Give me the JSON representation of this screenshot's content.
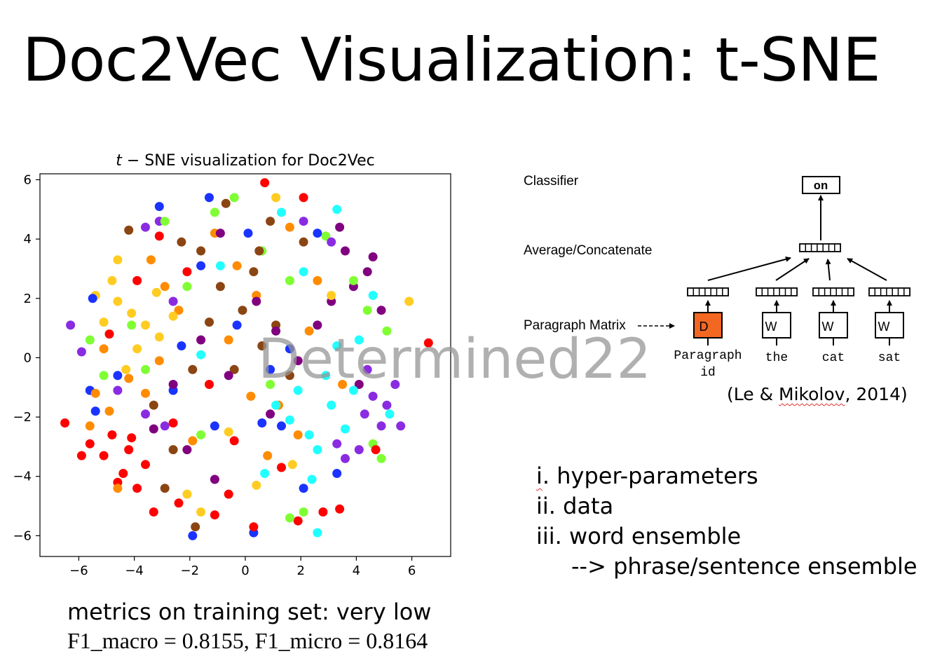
{
  "slide": {
    "title": "Doc2Vec Visualization: t-SNE",
    "watermark": "Determined22",
    "metrics_label": "metrics on training set: very low",
    "scores": "F1_macro = 0.8155, F1_micro = 0.8164",
    "citation_open": "(Le & ",
    "citation_author": "Mikolov",
    "citation_close": ", 2014)",
    "notes": {
      "item1_num": "i",
      "item1_rest": ". hyper-parameters",
      "item2": "ii. data",
      "item3": "iii. word ensemble",
      "item4": "--> phrase/sentence ensemble"
    }
  },
  "diagram": {
    "classifier_label": "Classifier",
    "average_label": "Average/Concatenate",
    "paragraph_matrix_label": "Paragraph Matrix",
    "output_word": "on",
    "paragraph_box": "D",
    "word_box": "W",
    "paragraph_id_line1": "Paragraph",
    "paragraph_id_line2": "id",
    "context_words": [
      "the",
      "cat",
      "sat"
    ],
    "paragraph_box_color": "#f26722"
  },
  "chart_data": {
    "type": "scatter",
    "title_italic": "t",
    "title_rest": " − SNE visualization for Doc2Vec",
    "xlabel": "",
    "ylabel": "",
    "xlim": [
      -7.4,
      7.4
    ],
    "ylim": [
      -6.7,
      6.2
    ],
    "xticks": [
      -6,
      -4,
      -2,
      0,
      2,
      4,
      6
    ],
    "yticks": [
      -6,
      -4,
      -2,
      0,
      2,
      4,
      6
    ],
    "tick_labels_x": [
      "−6",
      "−4",
      "−2",
      "0",
      "2",
      "4",
      "6"
    ],
    "tick_labels_y": [
      "−6",
      "−4",
      "−2",
      "0",
      "2",
      "4",
      "6"
    ],
    "grid": false,
    "legend": "none",
    "series": [
      {
        "color": "#ff0000",
        "points": [
          [
            -4.4,
            -3.9
          ],
          [
            -5.1,
            -3.3
          ],
          [
            -3.9,
            -4.4
          ],
          [
            -4.8,
            -2.6
          ],
          [
            -4.2,
            -3.1
          ],
          [
            -5.6,
            -2.9
          ],
          [
            -3.6,
            -3.6
          ],
          [
            -4.6,
            -4.2
          ],
          [
            -2.4,
            -4.9
          ],
          [
            -3.3,
            -5.2
          ],
          [
            -1.1,
            -5.3
          ],
          [
            0.3,
            -5.7
          ],
          [
            1.9,
            -5.5
          ],
          [
            2.8,
            -5.2
          ],
          [
            3.4,
            -5.1
          ],
          [
            -0.6,
            -4.6
          ],
          [
            -6.5,
            -2.2
          ],
          [
            -5.9,
            -3.3
          ],
          [
            0.7,
            5.9
          ],
          [
            2.1,
            5.4
          ],
          [
            -2.6,
            -2.2
          ],
          [
            -0.4,
            -2.8
          ],
          [
            -4.9,
            0.8
          ],
          [
            -3.1,
            4.1
          ],
          [
            -1.3,
            -0.9
          ],
          [
            4.7,
            -3.1
          ],
          [
            6.6,
            0.5
          ],
          [
            -4.1,
            -2.7
          ],
          [
            -3.9,
            2.6
          ],
          [
            1.3,
            -3.7
          ],
          [
            -2.1,
            2.9
          ]
        ]
      },
      {
        "color": "#ff8c00",
        "points": [
          [
            -5.6,
            -2.3
          ],
          [
            -4.9,
            -1.8
          ],
          [
            -3.6,
            -1.2
          ],
          [
            -2.4,
            1.6
          ],
          [
            -0.6,
            0.6
          ],
          [
            0.4,
            2.1
          ],
          [
            1.2,
            -1.6
          ],
          [
            -3.1,
            -0.1
          ],
          [
            -1.9,
            -2.8
          ],
          [
            -4.2,
            -0.7
          ],
          [
            -5.1,
            0.3
          ],
          [
            2.6,
            2.6
          ],
          [
            0.8,
            -3.3
          ],
          [
            -1.1,
            4.2
          ],
          [
            3.5,
            -0.9
          ],
          [
            -2.9,
            2.4
          ],
          [
            1.6,
            4.4
          ],
          [
            -4.6,
            -4.4
          ],
          [
            -0.3,
            3.1
          ],
          [
            -5.4,
            -1.2
          ],
          [
            1.9,
            -2.6
          ],
          [
            -3.4,
            3.3
          ],
          [
            0.2,
            -1.3
          ],
          [
            2.3,
            0.9
          ]
        ]
      },
      {
        "color": "#ffcc22",
        "points": [
          [
            -4.1,
            1.5
          ],
          [
            -3.6,
            1.1
          ],
          [
            -4.6,
            1.9
          ],
          [
            -3.1,
            0.7
          ],
          [
            -4.8,
            2.6
          ],
          [
            -3.9,
            0.3
          ],
          [
            -2.6,
            1.4
          ],
          [
            -4.3,
            -0.4
          ],
          [
            -3.2,
            2.2
          ],
          [
            -5.1,
            1.2
          ],
          [
            -0.6,
            -2.5
          ],
          [
            -1.6,
            -5.2
          ],
          [
            0.4,
            -4.3
          ],
          [
            3.1,
            2.1
          ],
          [
            1.7,
            -3.6
          ],
          [
            -5.4,
            2.1
          ],
          [
            -4.6,
            3.3
          ],
          [
            5.9,
            1.9
          ],
          [
            -2.1,
            -4.6
          ],
          [
            1.1,
            5.4
          ]
        ]
      },
      {
        "color": "#8b4513",
        "points": [
          [
            -0.1,
            1.6
          ],
          [
            0.6,
            0.4
          ],
          [
            -0.9,
            2.4
          ],
          [
            1.1,
            1.1
          ],
          [
            -0.4,
            -0.4
          ],
          [
            -1.6,
            3.6
          ],
          [
            0.3,
            2.9
          ],
          [
            -2.6,
            -3.1
          ],
          [
            -3.3,
            -1.6
          ],
          [
            1.6,
            -0.6
          ],
          [
            -1.9,
            -0.4
          ],
          [
            -4.2,
            4.3
          ],
          [
            0.9,
            4.6
          ],
          [
            -0.7,
            5.2
          ],
          [
            2.1,
            3.9
          ],
          [
            -1.3,
            1.2
          ],
          [
            -2.9,
            -4.4
          ],
          [
            -2.3,
            3.9
          ],
          [
            -1.8,
            -5.7
          ],
          [
            0.5,
            3.6
          ]
        ]
      },
      {
        "color": "#1a33ff",
        "points": [
          [
            -1.6,
            3.1
          ],
          [
            0.1,
            4.2
          ],
          [
            -0.3,
            1.1
          ],
          [
            0.9,
            -0.4
          ],
          [
            -2.6,
            -1.1
          ],
          [
            1.6,
            0.3
          ],
          [
            -1.1,
            -2.3
          ],
          [
            0.3,
            -5.9
          ],
          [
            -4.6,
            -0.6
          ],
          [
            -5.6,
            -1.1
          ],
          [
            -5.4,
            -1.8
          ],
          [
            -2.3,
            0.4
          ],
          [
            1.3,
            -2.3
          ],
          [
            2.6,
            4.2
          ],
          [
            -1.3,
            5.4
          ],
          [
            3.3,
            -3.9
          ],
          [
            -3.1,
            5.1
          ],
          [
            0.6,
            -2.2
          ],
          [
            -5.5,
            2.0
          ],
          [
            -1.9,
            -6.0
          ],
          [
            2.1,
            -4.4
          ]
        ]
      },
      {
        "color": "#7fff33",
        "points": [
          [
            -1.1,
            4.9
          ],
          [
            0.6,
            3.6
          ],
          [
            -2.1,
            2.4
          ],
          [
            1.6,
            2.6
          ],
          [
            2.9,
            4.1
          ],
          [
            -0.4,
            5.4
          ],
          [
            -5.1,
            -0.6
          ],
          [
            -5.6,
            0.6
          ],
          [
            4.9,
            -3.4
          ],
          [
            4.6,
            -2.9
          ],
          [
            5.1,
            0.9
          ],
          [
            2.1,
            -5.2
          ],
          [
            1.6,
            -5.4
          ],
          [
            -1.6,
            -2.6
          ],
          [
            -3.6,
            -0.4
          ],
          [
            3.9,
            2.6
          ],
          [
            -2.9,
            4.6
          ],
          [
            4.4,
            1.6
          ],
          [
            0.9,
            -0.9
          ],
          [
            -4.1,
            1.1
          ]
        ]
      },
      {
        "color": "#22ffff",
        "points": [
          [
            1.6,
            -2.1
          ],
          [
            2.3,
            -2.6
          ],
          [
            3.1,
            -1.6
          ],
          [
            1.9,
            -1.1
          ],
          [
            2.6,
            -3.1
          ],
          [
            3.6,
            -2.4
          ],
          [
            1.1,
            -1.6
          ],
          [
            2.9,
            -0.6
          ],
          [
            4.1,
            0.6
          ],
          [
            2.1,
            2.9
          ],
          [
            2.4,
            -4.1
          ],
          [
            3.3,
            0.4
          ],
          [
            -0.9,
            3.1
          ],
          [
            1.3,
            4.9
          ],
          [
            4.6,
            2.1
          ],
          [
            2.6,
            -5.9
          ],
          [
            3.9,
            -1.1
          ],
          [
            0.7,
            -3.9
          ],
          [
            -1.6,
            0.1
          ],
          [
            5.2,
            -1.9
          ],
          [
            3.3,
            5.0
          ]
        ]
      },
      {
        "color": "#8a2be2",
        "points": [
          [
            4.3,
            -1.9
          ],
          [
            4.9,
            -2.3
          ],
          [
            4.1,
            -3.1
          ],
          [
            3.6,
            -3.4
          ],
          [
            4.6,
            -1.3
          ],
          [
            5.1,
            -1.6
          ],
          [
            3.3,
            -2.9
          ],
          [
            4.4,
            -0.4
          ],
          [
            5.4,
            -0.9
          ],
          [
            -3.1,
            4.6
          ],
          [
            -3.6,
            4.4
          ],
          [
            -6.3,
            1.1
          ],
          [
            -5.9,
            0.2
          ],
          [
            -3.6,
            -1.9
          ],
          [
            -2.9,
            -2.3
          ],
          [
            -2.6,
            1.9
          ],
          [
            2.1,
            4.6
          ],
          [
            -4.6,
            -1.1
          ],
          [
            3.1,
            3.9
          ],
          [
            5.6,
            -2.3
          ]
        ]
      },
      {
        "color": "#800080",
        "points": [
          [
            3.9,
            2.4
          ],
          [
            4.4,
            2.9
          ],
          [
            3.1,
            1.9
          ],
          [
            3.6,
            3.6
          ],
          [
            4.9,
            1.6
          ],
          [
            1.1,
            0.9
          ],
          [
            2.6,
            1.1
          ],
          [
            -0.6,
            -0.6
          ],
          [
            0.4,
            1.9
          ],
          [
            -1.6,
            0.6
          ],
          [
            0.9,
            -1.9
          ],
          [
            4.1,
            -0.9
          ],
          [
            -2.1,
            -3.1
          ],
          [
            3.4,
            4.4
          ],
          [
            -0.9,
            4.2
          ],
          [
            -2.6,
            -0.9
          ],
          [
            1.9,
            -0.1
          ],
          [
            -1.1,
            -4.1
          ],
          [
            4.6,
            3.4
          ],
          [
            -3.3,
            -2.4
          ]
        ]
      }
    ]
  }
}
